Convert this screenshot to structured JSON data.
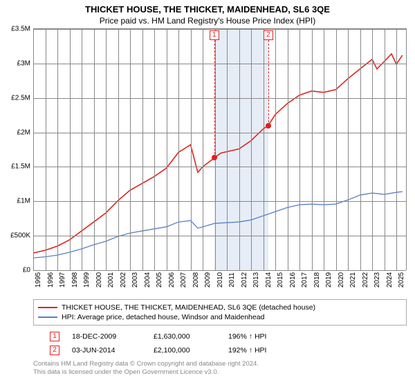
{
  "title": "THICKET HOUSE, THE THICKET, MAIDENHEAD, SL6 3QE",
  "subtitle": "Price paid vs. HM Land Registry's House Price Index (HPI)",
  "chart": {
    "type": "line",
    "background_color": "#ffffff",
    "grid_color": "#888888",
    "shade_color": "#dbe6f4",
    "ylim": [
      0,
      3500000
    ],
    "ytick_step": 500000,
    "ytick_labels": [
      "£0",
      "£500K",
      "£1M",
      "£1.5M",
      "£2M",
      "£2.5M",
      "£3M",
      "£3.5M"
    ],
    "xlim": [
      1995,
      2025.8
    ],
    "xtick_step": 1,
    "xtick_labels": [
      "1995",
      "1996",
      "1997",
      "1998",
      "1999",
      "2000",
      "2001",
      "2002",
      "2003",
      "2004",
      "2005",
      "2006",
      "2007",
      "2008",
      "2009",
      "2010",
      "2011",
      "2012",
      "2013",
      "2014",
      "2015",
      "2016",
      "2017",
      "2018",
      "2019",
      "2020",
      "2021",
      "2022",
      "2023",
      "2024",
      "2025"
    ],
    "shade_x": [
      2009.96,
      2014.42
    ],
    "series": [
      {
        "name": "property",
        "label": "THICKET HOUSE, THE THICKET, MAIDENHEAD, SL6 3QE (detached house)",
        "color": "#e2201d",
        "width": 1.6,
        "points": [
          [
            1995,
            250000
          ],
          [
            1996,
            290000
          ],
          [
            1997,
            350000
          ],
          [
            1998,
            440000
          ],
          [
            1999,
            570000
          ],
          [
            2000,
            700000
          ],
          [
            2001,
            830000
          ],
          [
            2002,
            1010000
          ],
          [
            2003,
            1160000
          ],
          [
            2004,
            1260000
          ],
          [
            2005,
            1360000
          ],
          [
            2006,
            1480000
          ],
          [
            2007,
            1710000
          ],
          [
            2008,
            1820000
          ],
          [
            2008.6,
            1420000
          ],
          [
            2009,
            1500000
          ],
          [
            2009.96,
            1630000
          ],
          [
            2010.5,
            1700000
          ],
          [
            2011,
            1720000
          ],
          [
            2012,
            1760000
          ],
          [
            2013,
            1880000
          ],
          [
            2014,
            2050000
          ],
          [
            2014.42,
            2100000
          ],
          [
            2015,
            2260000
          ],
          [
            2016,
            2420000
          ],
          [
            2017,
            2540000
          ],
          [
            2018,
            2600000
          ],
          [
            2019,
            2580000
          ],
          [
            2020,
            2620000
          ],
          [
            2021,
            2780000
          ],
          [
            2022,
            2920000
          ],
          [
            2023,
            3060000
          ],
          [
            2023.4,
            2920000
          ],
          [
            2024,
            3030000
          ],
          [
            2024.6,
            3140000
          ],
          [
            2025,
            2990000
          ],
          [
            2025.5,
            3120000
          ]
        ]
      },
      {
        "name": "hpi",
        "label": "HPI: Average price, detached house, Windsor and Maidenhead",
        "color": "#5a7fc4",
        "width": 1.3,
        "points": [
          [
            1995,
            180000
          ],
          [
            1996,
            195000
          ],
          [
            1997,
            220000
          ],
          [
            1998,
            260000
          ],
          [
            1999,
            310000
          ],
          [
            2000,
            370000
          ],
          [
            2001,
            420000
          ],
          [
            2002,
            490000
          ],
          [
            2003,
            540000
          ],
          [
            2004,
            570000
          ],
          [
            2005,
            600000
          ],
          [
            2006,
            630000
          ],
          [
            2007,
            700000
          ],
          [
            2008,
            720000
          ],
          [
            2008.6,
            610000
          ],
          [
            2009,
            630000
          ],
          [
            2010,
            680000
          ],
          [
            2011,
            690000
          ],
          [
            2012,
            700000
          ],
          [
            2013,
            730000
          ],
          [
            2014,
            790000
          ],
          [
            2015,
            850000
          ],
          [
            2016,
            910000
          ],
          [
            2017,
            950000
          ],
          [
            2018,
            960000
          ],
          [
            2019,
            950000
          ],
          [
            2020,
            960000
          ],
          [
            2021,
            1020000
          ],
          [
            2022,
            1090000
          ],
          [
            2023,
            1120000
          ],
          [
            2024,
            1100000
          ],
          [
            2025,
            1130000
          ],
          [
            2025.5,
            1140000
          ]
        ]
      }
    ],
    "sale_markers": [
      {
        "n": "1",
        "x": 2009.96,
        "y": 1630000,
        "color": "#e2201d"
      },
      {
        "n": "2",
        "x": 2014.42,
        "y": 2100000,
        "color": "#e2201d"
      }
    ],
    "marker_box_color": "#e2201d",
    "dot_color": "#e2201d",
    "label_fontsize": 10,
    "title_fontsize": 13
  },
  "legend": {
    "items": [
      {
        "color": "#e2201d",
        "label": "THICKET HOUSE, THE THICKET, MAIDENHEAD, SL6 3QE (detached house)"
      },
      {
        "color": "#5a7fc4",
        "label": "HPI: Average price, detached house, Windsor and Maidenhead"
      }
    ]
  },
  "sales": [
    {
      "n": "1",
      "color": "#e2201d",
      "date": "18-DEC-2009",
      "price": "£1,630,000",
      "pct": "196% ↑ HPI"
    },
    {
      "n": "2",
      "color": "#e2201d",
      "date": "03-JUN-2014",
      "price": "£2,100,000",
      "pct": "192% ↑ HPI"
    }
  ],
  "footer": {
    "line1": "Contains HM Land Registry data © Crown copyright and database right 2024.",
    "line2": "This data is licensed under the Open Government Licence v3.0."
  }
}
